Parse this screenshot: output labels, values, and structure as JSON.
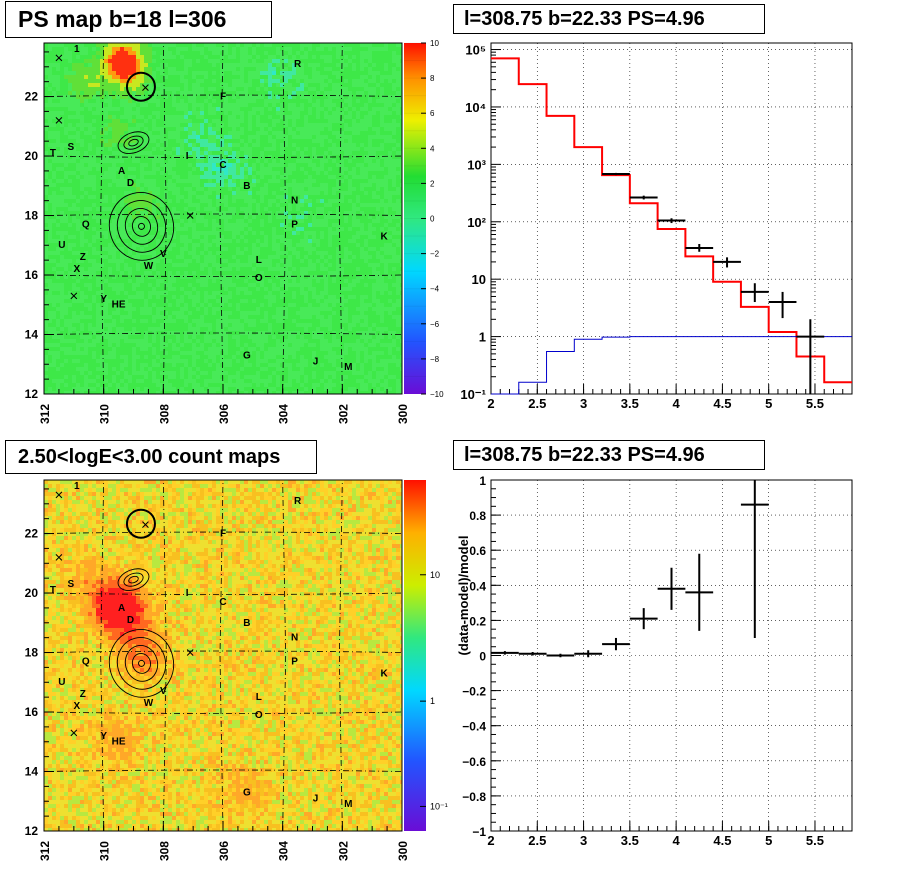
{
  "panels": {
    "ps_map": {
      "title": "PS map b=18 l=306"
    },
    "count_map": {
      "title": "2.50<logE<3.00 count maps"
    },
    "spectrum": {
      "title": "l=308.75 b=22.33 PS=4.96"
    },
    "residual": {
      "title": "l=308.75 b=22.33 PS=4.96"
    }
  },
  "chart_data": [
    {
      "type": "heatmap",
      "id": "ps_map",
      "title": "PS map b=18 l=306",
      "xlabel": "",
      "ylabel": "",
      "xlim": [
        312,
        300
      ],
      "ylim": [
        12,
        23.8
      ],
      "x_ticks": [
        "312",
        "310",
        "308",
        "306",
        "304",
        "302",
        "300"
      ],
      "y_ticks": [
        "12",
        "14",
        "16",
        "18",
        "20",
        "22"
      ],
      "colorbar": {
        "range": [
          -10,
          10
        ],
        "ticks": [
          "10",
          "8",
          "6",
          "4",
          "2",
          "0",
          "−2",
          "−4",
          "−6",
          "−8",
          "−10"
        ]
      },
      "source_labels": [
        {
          "text": "1",
          "l": 310.9,
          "b": 23.5
        },
        {
          "text": "R",
          "l": 303.5,
          "b": 23.0
        },
        {
          "text": "F",
          "l": 306.0,
          "b": 21.9
        },
        {
          "text": "T",
          "l": 311.7,
          "b": 20.0
        },
        {
          "text": "S",
          "l": 311.1,
          "b": 20.2
        },
        {
          "text": "I",
          "l": 307.2,
          "b": 19.9
        },
        {
          "text": "C",
          "l": 306.0,
          "b": 19.6
        },
        {
          "text": "A",
          "l": 309.4,
          "b": 19.4
        },
        {
          "text": "D",
          "l": 309.1,
          "b": 19.0
        },
        {
          "text": "B",
          "l": 305.2,
          "b": 18.9
        },
        {
          "text": "N",
          "l": 303.6,
          "b": 18.4
        },
        {
          "text": "Q",
          "l": 310.6,
          "b": 17.6
        },
        {
          "text": "P",
          "l": 303.6,
          "b": 17.6
        },
        {
          "text": "K",
          "l": 300.6,
          "b": 17.2
        },
        {
          "text": "U",
          "l": 311.4,
          "b": 16.9
        },
        {
          "text": "V",
          "l": 308.0,
          "b": 16.6
        },
        {
          "text": "Z",
          "l": 310.7,
          "b": 16.5
        },
        {
          "text": "L",
          "l": 304.8,
          "b": 16.4
        },
        {
          "text": "W",
          "l": 308.5,
          "b": 16.2
        },
        {
          "text": "X",
          "l": 310.9,
          "b": 16.1
        },
        {
          "text": "O",
          "l": 304.8,
          "b": 15.8
        },
        {
          "text": "Y",
          "l": 310.0,
          "b": 15.1
        },
        {
          "text": "HE",
          "l": 309.5,
          "b": 14.9
        },
        {
          "text": "G",
          "l": 305.2,
          "b": 13.2
        },
        {
          "text": "J",
          "l": 302.9,
          "b": 13.0
        },
        {
          "text": "M",
          "l": 301.8,
          "b": 12.8
        }
      ],
      "markers": [
        {
          "l": 311.5,
          "b": 23.3
        },
        {
          "l": 311.5,
          "b": 21.2
        },
        {
          "l": 307.1,
          "b": 18.0
        },
        {
          "l": 311.0,
          "b": 15.3
        },
        {
          "l": 308.6,
          "b": 22.3
        }
      ],
      "circle": {
        "l": 308.75,
        "b": 22.33,
        "radius_deg": 0.35
      },
      "hot_spots": [
        {
          "l": 309.4,
          "b": 23.3,
          "value": 8
        },
        {
          "l": 309.2,
          "b": 22.8,
          "value": 6
        },
        {
          "l": 310.5,
          "b": 22.5,
          "value": 3
        },
        {
          "l": 309.5,
          "b": 20.8,
          "value": 2
        },
        {
          "l": 308.7,
          "b": 18.4,
          "value": 2
        },
        {
          "l": 306.8,
          "b": 20.5,
          "value": -1
        },
        {
          "l": 306.0,
          "b": 19.5,
          "value": -1.5
        },
        {
          "l": 304.2,
          "b": 22.7,
          "value": -1
        },
        {
          "l": 303.5,
          "b": 18.0,
          "value": -0.5
        }
      ]
    },
    {
      "type": "heatmap",
      "id": "count_map",
      "title": "2.50<logE<3.00 count maps",
      "xlabel": "",
      "ylabel": "",
      "xlim": [
        312,
        300
      ],
      "ylim": [
        12,
        23.8
      ],
      "x_ticks": [
        "312",
        "310",
        "308",
        "306",
        "304",
        "302",
        "300"
      ],
      "y_ticks": [
        "12",
        "14",
        "16",
        "18",
        "20",
        "22"
      ],
      "colorbar": {
        "scale": "log",
        "ticks": [
          "10",
          "1",
          "10⁻¹"
        ]
      },
      "source_labels_same_as": "ps_map",
      "hot_spots": [
        {
          "l": 309.6,
          "b": 19.6,
          "value": 60
        },
        {
          "l": 309.1,
          "b": 19.0,
          "value": 25
        },
        {
          "l": 308.7,
          "b": 17.9,
          "value": 20
        },
        {
          "l": 309.5,
          "b": 15.0,
          "value": 12
        },
        {
          "l": 305.3,
          "b": 13.4,
          "value": 10
        },
        {
          "l": 310.5,
          "b": 20.5,
          "value": 8
        }
      ]
    },
    {
      "type": "line",
      "id": "spectrum",
      "title": "l=308.75 b=22.33 PS=4.96",
      "xlabel": "",
      "ylabel": "",
      "xlim": [
        2,
        5.9
      ],
      "ylim": [
        0.1,
        130000
      ],
      "yscale": "log",
      "grid": true,
      "x_ticks": [
        "2",
        "2.5",
        "3",
        "3.5",
        "4",
        "4.5",
        "5",
        "5.5"
      ],
      "y_ticks": [
        "10⁻¹",
        "1",
        "10",
        "10²",
        "10³",
        "10⁴",
        "10⁵"
      ],
      "bin_edges": [
        2.0,
        2.3,
        2.6,
        2.9,
        3.2,
        3.5,
        3.8,
        4.1,
        4.4,
        4.7,
        5.0,
        5.3,
        5.6,
        5.9
      ],
      "series": [
        {
          "style": "step",
          "color": "#ff0000",
          "values": [
            70000,
            25000,
            7000,
            2000,
            650,
            210,
            75,
            25,
            9,
            3.3,
            1.2,
            0.45,
            0.16
          ]
        },
        {
          "style": "step",
          "color": "#0000cc",
          "values": [
            0.1,
            0.16,
            0.55,
            0.9,
            0.98,
            1.0,
            1.0,
            1.0,
            1.0,
            1.0,
            1.0,
            1.0,
            1.0
          ]
        },
        {
          "style": "errorbar",
          "color": "#000000",
          "points": [
            {
              "x": 3.35,
              "y": 680,
              "xerr": 0.15,
              "ylo": 650,
              "yhi": 710
            },
            {
              "x": 3.65,
              "y": 265,
              "xerr": 0.15,
              "ylo": 245,
              "yhi": 285
            },
            {
              "x": 3.95,
              "y": 105,
              "xerr": 0.15,
              "ylo": 95,
              "yhi": 115
            },
            {
              "x": 4.25,
              "y": 35,
              "xerr": 0.15,
              "ylo": 30,
              "yhi": 41
            },
            {
              "x": 4.55,
              "y": 20,
              "xerr": 0.15,
              "ylo": 16,
              "yhi": 24
            },
            {
              "x": 4.85,
              "y": 6,
              "xerr": 0.15,
              "ylo": 4,
              "yhi": 8.5
            },
            {
              "x": 5.15,
              "y": 4,
              "xerr": 0.15,
              "ylo": 2.1,
              "yhi": 6
            },
            {
              "x": 5.45,
              "y": 1.0,
              "xerr": 0.15,
              "ylo": 0.1,
              "yhi": 2
            }
          ]
        }
      ]
    },
    {
      "type": "scatter",
      "id": "residual",
      "title": "l=308.75 b=22.33 PS=4.96",
      "xlabel": "",
      "ylabel": "(data-model)/model",
      "xlim": [
        2,
        5.9
      ],
      "ylim": [
        -1,
        1
      ],
      "grid": true,
      "x_ticks": [
        "2",
        "2.5",
        "3",
        "3.5",
        "4",
        "4.5",
        "5",
        "5.5"
      ],
      "y_ticks": [
        "−1",
        "−0.8",
        "−0.6",
        "−0.4",
        "−0.2",
        "0",
        "0.2",
        "0.4",
        "0.6",
        "0.8",
        "1"
      ],
      "series": [
        {
          "style": "errorbar",
          "color": "#000000",
          "points": [
            {
              "x": 2.15,
              "y": 0.015,
              "xerr": 0.15,
              "ylo": 0.005,
              "yhi": 0.025
            },
            {
              "x": 2.45,
              "y": 0.01,
              "xerr": 0.15,
              "ylo": 0.0,
              "yhi": 0.02
            },
            {
              "x": 2.75,
              "y": 0.0,
              "xerr": 0.15,
              "ylo": -0.01,
              "yhi": 0.01
            },
            {
              "x": 3.05,
              "y": 0.01,
              "xerr": 0.15,
              "ylo": -0.01,
              "yhi": 0.03
            },
            {
              "x": 3.35,
              "y": 0.065,
              "xerr": 0.15,
              "ylo": 0.03,
              "yhi": 0.1
            },
            {
              "x": 3.65,
              "y": 0.21,
              "xerr": 0.15,
              "ylo": 0.15,
              "yhi": 0.27
            },
            {
              "x": 3.95,
              "y": 0.38,
              "xerr": 0.15,
              "ylo": 0.26,
              "yhi": 0.5
            },
            {
              "x": 4.25,
              "y": 0.36,
              "xerr": 0.15,
              "ylo": 0.14,
              "yhi": 0.58
            },
            {
              "x": 4.85,
              "y": 0.86,
              "xerr": 0.15,
              "ylo": 0.1,
              "yhi": 1.0
            }
          ]
        }
      ]
    }
  ]
}
